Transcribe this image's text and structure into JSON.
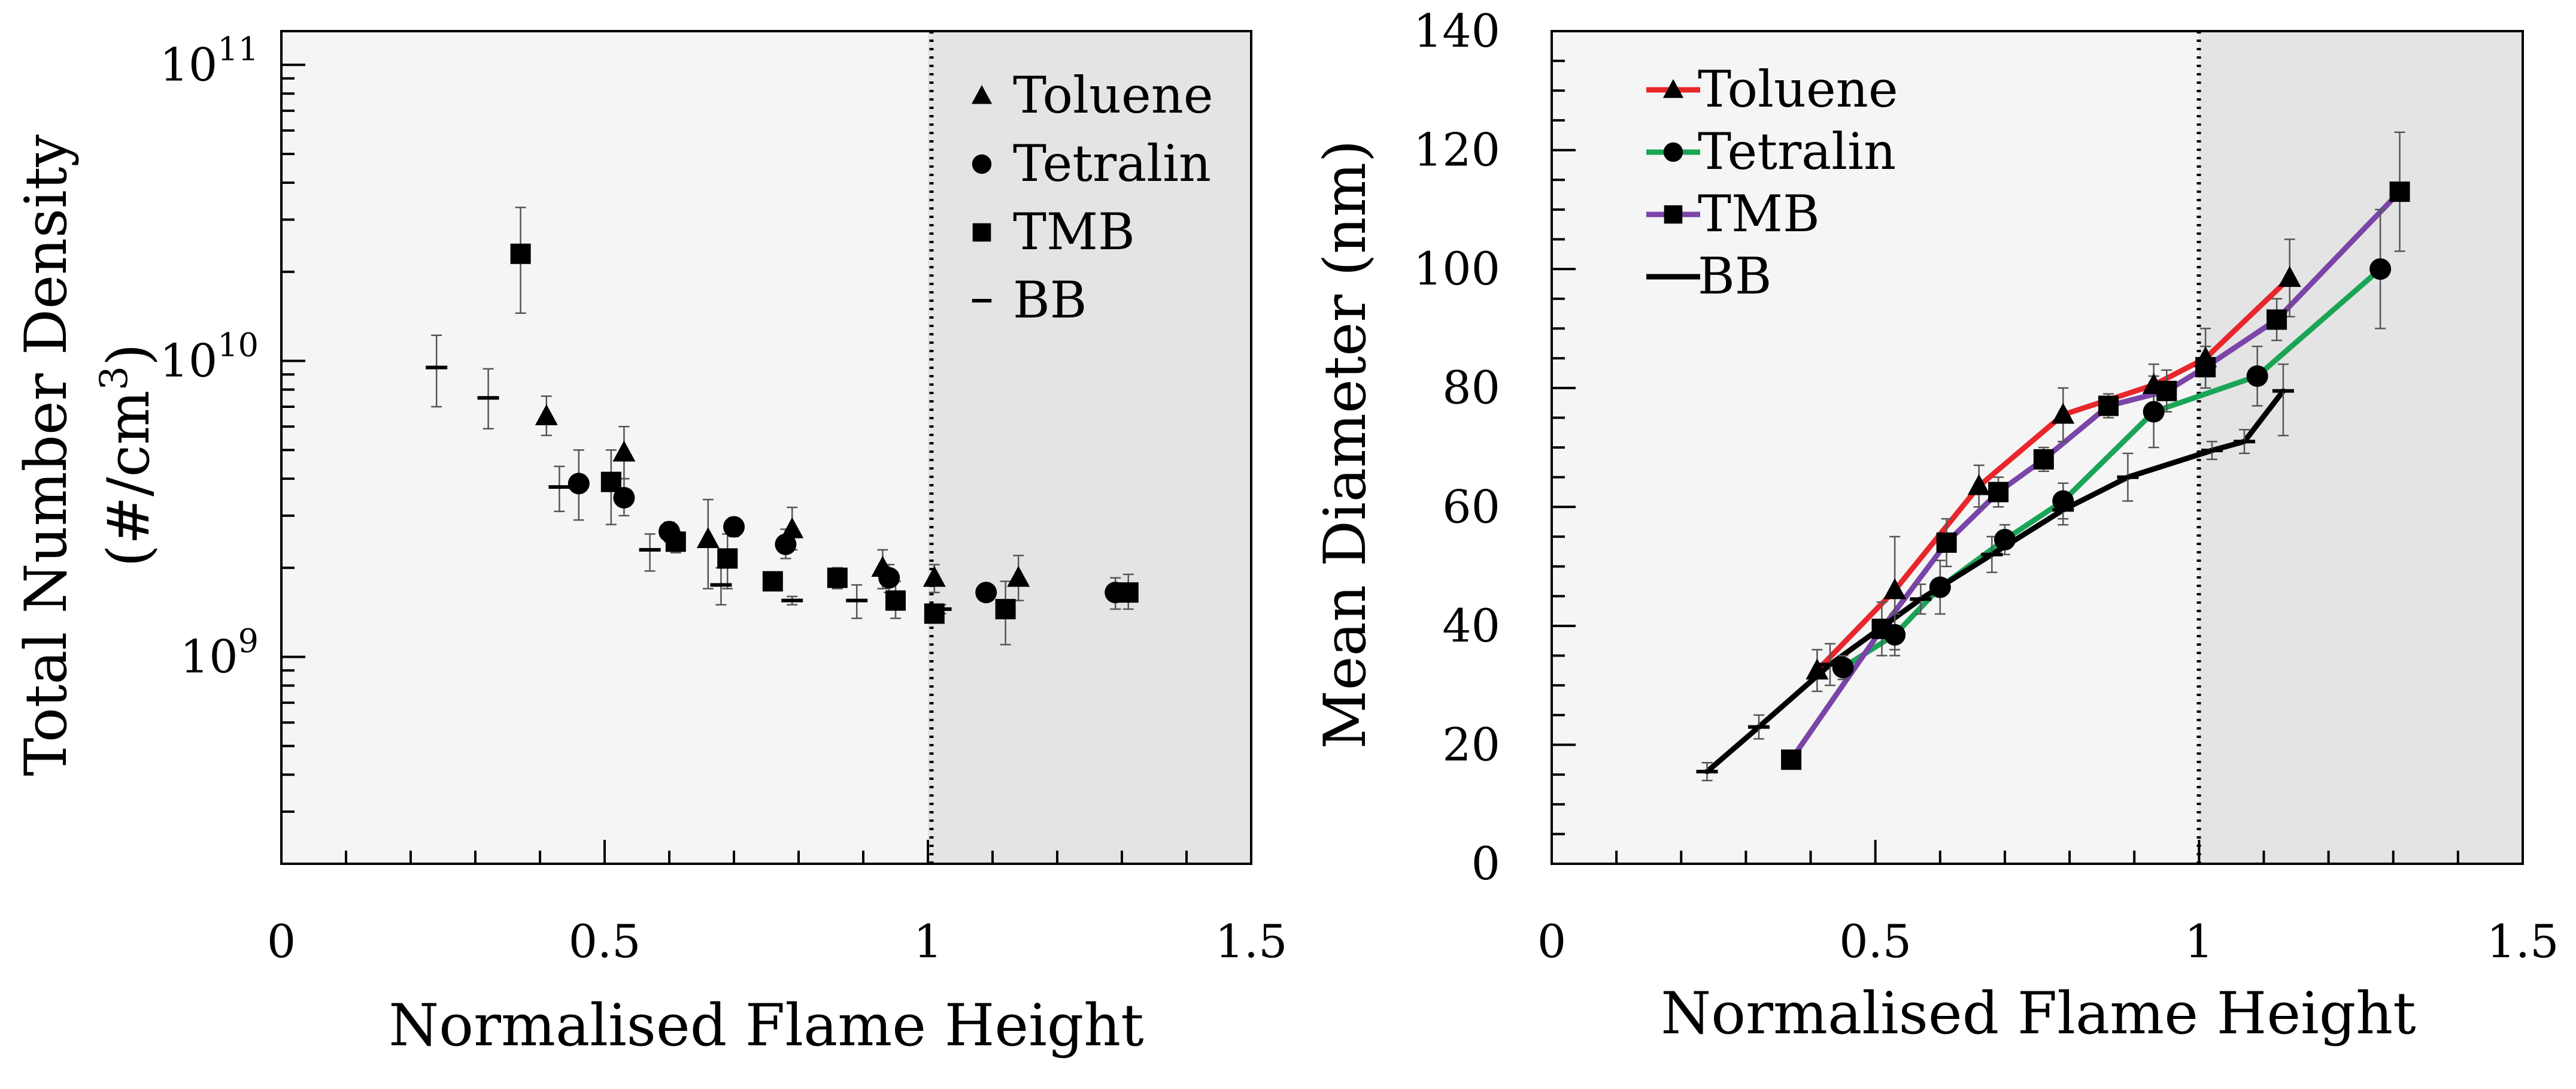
{
  "chart_data": [
    {
      "type": "scatter",
      "xlabel": "Normalised Flame Height",
      "ylabel_line1": "Total Number Density",
      "ylabel_line2": "(#/cm3)",
      "yscale": "log",
      "xlim": [
        0,
        1.5
      ],
      "ylim": [
        200000000.0,
        130000000000.0
      ],
      "x_ticks": [
        {
          "v": 0,
          "label": "0"
        },
        {
          "v": 0.5,
          "label": "0.5"
        },
        {
          "v": 1,
          "label": "1"
        },
        {
          "v": 1.5,
          "label": "1.5"
        }
      ],
      "y_ticks": [
        {
          "v": 1000000000.0,
          "base": "10",
          "exp": "9"
        },
        {
          "v": 10000000000.0,
          "base": "10",
          "exp": "10"
        },
        {
          "v": 100000000000.0,
          "base": "10",
          "exp": "11"
        }
      ],
      "divider_x": 1.0,
      "legend_position": "top-right",
      "series": [
        {
          "name": "Toluene",
          "marker": "triangle",
          "points": [
            {
              "x": 0.41,
              "y": 6500000000.0,
              "lo": 5600000000.0,
              "hi": 7600000000.0
            },
            {
              "x": 0.53,
              "y": 4900000000.0,
              "lo": 4000000000.0,
              "hi": 6000000000.0
            },
            {
              "x": 0.66,
              "y": 2500000000.0,
              "lo": 1700000000.0,
              "hi": 3400000000.0
            },
            {
              "x": 0.79,
              "y": 2700000000.0,
              "lo": 2300000000.0,
              "hi": 3200000000.0
            },
            {
              "x": 0.93,
              "y": 2000000000.0,
              "lo": 1700000000.0,
              "hi": 2300000000.0
            },
            {
              "x": 1.01,
              "y": 1850000000.0,
              "lo": 1650000000.0,
              "hi": 2050000000.0
            },
            {
              "x": 1.14,
              "y": 1850000000.0,
              "lo": 1550000000.0,
              "hi": 2200000000.0
            }
          ]
        },
        {
          "name": "Tetralin",
          "marker": "circle",
          "points": [
            {
              "x": 0.46,
              "y": 3850000000.0,
              "lo": 2900000000.0,
              "hi": 5000000000.0
            },
            {
              "x": 0.53,
              "y": 3450000000.0,
              "lo": 3000000000.0,
              "hi": 4000000000.0
            },
            {
              "x": 0.6,
              "y": 2650000000.0,
              "lo": 2450000000.0,
              "hi": 2850000000.0
            },
            {
              "x": 0.7,
              "y": 2750000000.0,
              "lo": 2550000000.0,
              "hi": 2950000000.0
            },
            {
              "x": 0.78,
              "y": 2400000000.0,
              "lo": 2150000000.0,
              "hi": 2700000000.0
            },
            {
              "x": 0.94,
              "y": 1850000000.0,
              "lo": 1650000000.0,
              "hi": 2050000000.0
            },
            {
              "x": 1.09,
              "y": 1650000000.0,
              "lo": 1550000000.0,
              "hi": 1750000000.0
            },
            {
              "x": 1.29,
              "y": 1650000000.0,
              "lo": 1450000000.0,
              "hi": 1850000000.0
            }
          ]
        },
        {
          "name": "TMB",
          "marker": "square",
          "points": [
            {
              "x": 0.37,
              "y": 23000000000.0,
              "lo": 14500000000.0,
              "hi": 33000000000.0
            },
            {
              "x": 0.51,
              "y": 3900000000.0,
              "lo": 2800000000.0,
              "hi": 5000000000.0
            },
            {
              "x": 0.61,
              "y": 2450000000.0,
              "lo": 2250000000.0,
              "hi": 2650000000.0
            },
            {
              "x": 0.69,
              "y": 2150000000.0,
              "lo": 1700000000.0,
              "hi": 2600000000.0
            },
            {
              "x": 0.76,
              "y": 1800000000.0,
              "lo": 1700000000.0,
              "hi": 1900000000.0
            },
            {
              "x": 0.86,
              "y": 1850000000.0,
              "lo": 1700000000.0,
              "hi": 2000000000.0
            },
            {
              "x": 0.95,
              "y": 1550000000.0,
              "lo": 1350000000.0,
              "hi": 1800000000.0
            },
            {
              "x": 1.01,
              "y": 1400000000.0,
              "lo": 1300000000.0,
              "hi": 1500000000.0
            },
            {
              "x": 1.12,
              "y": 1450000000.0,
              "lo": 1100000000.0,
              "hi": 1800000000.0
            },
            {
              "x": 1.31,
              "y": 1650000000.0,
              "lo": 1450000000.0,
              "hi": 1900000000.0
            }
          ]
        },
        {
          "name": "BB",
          "marker": "dash",
          "points": [
            {
              "x": 0.24,
              "y": 9500000000.0,
              "lo": 7000000000.0,
              "hi": 12200000000.0
            },
            {
              "x": 0.32,
              "y": 7500000000.0,
              "lo": 5900000000.0,
              "hi": 9400000000.0
            },
            {
              "x": 0.43,
              "y": 3750000000.0,
              "lo": 3100000000.0,
              "hi": 4400000000.0
            },
            {
              "x": 0.57,
              "y": 2300000000.0,
              "lo": 1950000000.0,
              "hi": 2600000000.0
            },
            {
              "x": 0.68,
              "y": 1750000000.0,
              "lo": 1500000000.0,
              "hi": 2000000000.0
            },
            {
              "x": 0.79,
              "y": 1550000000.0,
              "lo": 1500000000.0,
              "hi": 1600000000.0
            },
            {
              "x": 0.89,
              "y": 1550000000.0,
              "lo": 1350000000.0,
              "hi": 1750000000.0
            },
            {
              "x": 1.02,
              "y": 1450000000.0,
              "lo": 1400000000.0,
              "hi": 1500000000.0
            }
          ]
        }
      ]
    },
    {
      "type": "line",
      "xlabel": "Normalised Flame Height",
      "ylabel": "Mean Diameter (nm)",
      "xlim": [
        0,
        1.5
      ],
      "ylim": [
        0,
        140
      ],
      "x_ticks": [
        {
          "v": 0,
          "label": "0"
        },
        {
          "v": 0.5,
          "label": "0.5"
        },
        {
          "v": 1,
          "label": "1"
        },
        {
          "v": 1.5,
          "label": "1.5"
        }
      ],
      "y_ticks": [
        {
          "v": 0,
          "label": "0"
        },
        {
          "v": 20,
          "label": "20"
        },
        {
          "v": 40,
          "label": "40"
        },
        {
          "v": 60,
          "label": "60"
        },
        {
          "v": 80,
          "label": "80"
        },
        {
          "v": 100,
          "label": "100"
        },
        {
          "v": 120,
          "label": "120"
        },
        {
          "v": 140,
          "label": "140"
        }
      ],
      "divider_x": 1.0,
      "legend_position": "top-left",
      "series": [
        {
          "name": "Toluene",
          "marker": "triangle",
          "color": "#e8262b",
          "points": [
            {
              "x": 0.41,
              "y": 32.5,
              "lo": 29,
              "hi": 36
            },
            {
              "x": 0.53,
              "y": 46,
              "lo": 36,
              "hi": 55
            },
            {
              "x": 0.66,
              "y": 63.5,
              "lo": 60,
              "hi": 67
            },
            {
              "x": 0.79,
              "y": 75.5,
              "lo": 71,
              "hi": 80
            },
            {
              "x": 0.93,
              "y": 80.5,
              "lo": 77,
              "hi": 84
            },
            {
              "x": 1.01,
              "y": 85,
              "lo": 80,
              "hi": 90
            },
            {
              "x": 1.14,
              "y": 98.5,
              "lo": 92,
              "hi": 105
            }
          ]
        },
        {
          "name": "Tetralin",
          "marker": "circle",
          "color": "#1aa556",
          "points": [
            {
              "x": 0.45,
              "y": 33,
              "lo": 31,
              "hi": 35
            },
            {
              "x": 0.53,
              "y": 38.5,
              "lo": 35,
              "hi": 42
            },
            {
              "x": 0.6,
              "y": 46.5,
              "lo": 42,
              "hi": 51
            },
            {
              "x": 0.7,
              "y": 54.5,
              "lo": 52,
              "hi": 57
            },
            {
              "x": 0.79,
              "y": 61,
              "lo": 58,
              "hi": 64
            },
            {
              "x": 0.93,
              "y": 76,
              "lo": 70,
              "hi": 82
            },
            {
              "x": 1.09,
              "y": 82,
              "lo": 77,
              "hi": 87
            },
            {
              "x": 1.28,
              "y": 100,
              "lo": 90,
              "hi": 110
            }
          ]
        },
        {
          "name": "TMB",
          "marker": "square",
          "color": "#7a44a8",
          "points": [
            {
              "x": 0.37,
              "y": 17.5,
              "lo": 16,
              "hi": 19
            },
            {
              "x": 0.51,
              "y": 39.5,
              "lo": 35,
              "hi": 44
            },
            {
              "x": 0.61,
              "y": 54,
              "lo": 50,
              "hi": 58
            },
            {
              "x": 0.69,
              "y": 62.5,
              "lo": 60,
              "hi": 65
            },
            {
              "x": 0.76,
              "y": 68,
              "lo": 66,
              "hi": 70
            },
            {
              "x": 0.86,
              "y": 77,
              "lo": 75,
              "hi": 79
            },
            {
              "x": 0.95,
              "y": 79.5,
              "lo": 76,
              "hi": 83
            },
            {
              "x": 1.01,
              "y": 83.5,
              "lo": 80,
              "hi": 87
            },
            {
              "x": 1.12,
              "y": 91.5,
              "lo": 88,
              "hi": 95
            },
            {
              "x": 1.31,
              "y": 113,
              "lo": 103,
              "hi": 123
            }
          ]
        },
        {
          "name": "BB",
          "marker": "dash",
          "color": "#000000",
          "points": [
            {
              "x": 0.24,
              "y": 15.5,
              "lo": 14,
              "hi": 17
            },
            {
              "x": 0.32,
              "y": 23,
              "lo": 21,
              "hi": 25
            },
            {
              "x": 0.43,
              "y": 33.5,
              "lo": 30,
              "hi": 37
            },
            {
              "x": 0.57,
              "y": 44.5,
              "lo": 42,
              "hi": 47
            },
            {
              "x": 0.68,
              "y": 52,
              "lo": 49,
              "hi": 55
            },
            {
              "x": 0.79,
              "y": 59.5,
              "lo": 57,
              "hi": 62
            },
            {
              "x": 0.89,
              "y": 65,
              "lo": 61,
              "hi": 69
            },
            {
              "x": 1.02,
              "y": 69.5,
              "lo": 68,
              "hi": 71
            },
            {
              "x": 1.07,
              "y": 71,
              "lo": 69,
              "hi": 73
            },
            {
              "x": 1.13,
              "y": 79.5,
              "lo": 72,
              "hi": 84
            }
          ]
        }
      ]
    }
  ]
}
